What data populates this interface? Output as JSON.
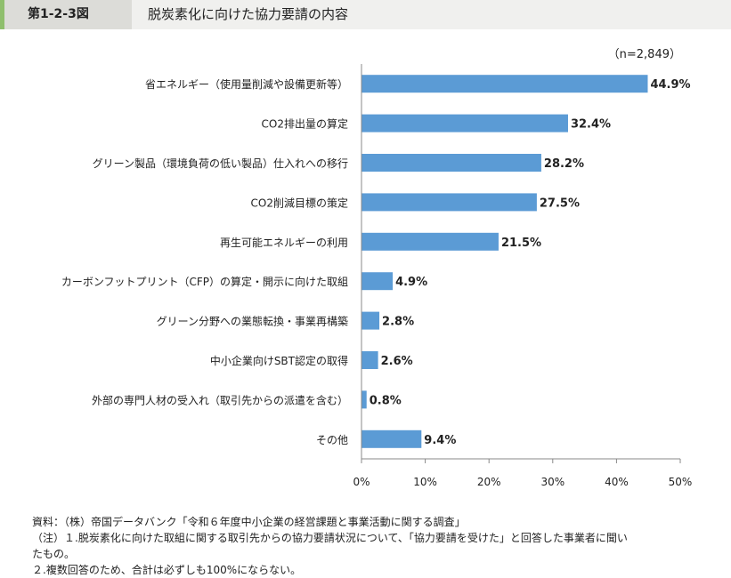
{
  "header": {
    "fig_label": "第1-2-3図",
    "title": "脱炭素化に向けた協力要請の内容"
  },
  "n_note": "（n=2,849）",
  "chart_data": {
    "type": "bar",
    "orientation": "horizontal",
    "categories": [
      "省エネルギー（使用量削減や設備更新等）",
      "CO2排出量の算定",
      "グリーン製品（環境負荷の低い製品）仕入れへの移行",
      "CO2削減目標の策定",
      "再生可能エネルギーの利用",
      "カーボンフットプリント（CFP）の算定・開示に向けた取組",
      "グリーン分野への業態転換・事業再構築",
      "中小企業向けSBT認定の取得",
      "外部の専門人材の受入れ（取引先からの派遣を含む）",
      "その他"
    ],
    "values": [
      44.9,
      32.4,
      28.2,
      27.5,
      21.5,
      4.9,
      2.8,
      2.6,
      0.8,
      9.4
    ],
    "value_labels": [
      "44.9%",
      "32.4%",
      "28.2%",
      "27.5%",
      "21.5%",
      "4.9%",
      "2.8%",
      "2.6%",
      "0.8%",
      "9.4%"
    ],
    "xlim": [
      0,
      50
    ],
    "xticks": [
      0,
      10,
      20,
      30,
      40,
      50
    ],
    "xtick_labels": [
      "0%",
      "10%",
      "20%",
      "30%",
      "40%",
      "50%"
    ],
    "bar_color": "#5b9bd5",
    "grid": false
  },
  "notes": {
    "source": "資料：（株）帝国データバンク「令和６年度中小企業の経営課題と事業活動に関する調査」",
    "note1_line1": "（注）１.脱炭素化に向けた取組に関する取引先からの協力要請状況について、「協力要請を受けた」と回答した事業者に聞い",
    "note1_line2": "たもの。",
    "note2": "２.複数回答のため、合計は必ずしも100%にならない。"
  }
}
